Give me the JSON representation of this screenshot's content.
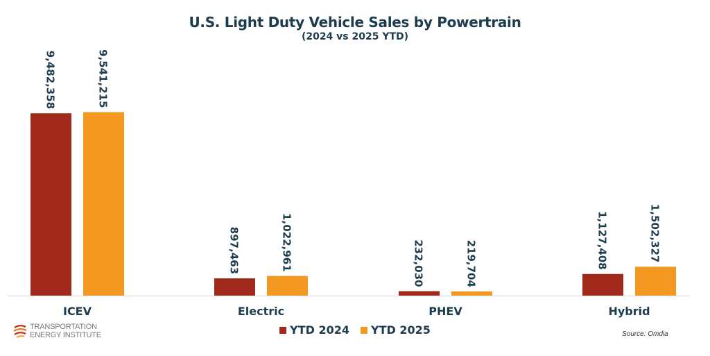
{
  "chart_data": {
    "type": "bar",
    "title": "U.S. Light Duty Vehicle Sales by Powertrain",
    "subtitle": "(2024 vs 2025 YTD)",
    "categories": [
      "ICEV",
      "Electric",
      "PHEV",
      "Hybrid"
    ],
    "series": [
      {
        "name": "YTD 2024",
        "color": "#a1291b",
        "values": [
          9482358,
          897463,
          232030,
          1127408
        ],
        "labels": [
          "9,482,358",
          "897,463",
          "232,030",
          "1,127,408"
        ]
      },
      {
        "name": "YTD 2025",
        "color": "#f39820",
        "values": [
          9541215,
          1022961,
          219704,
          1502327
        ],
        "labels": [
          "9,541,215",
          "1,022,961",
          "219,704",
          "1,502,327"
        ]
      }
    ],
    "xlabel": "",
    "ylabel": "",
    "ylim": [
      0,
      9600000
    ],
    "grid": false,
    "legend": "bottom-center",
    "data_labels": "rotated-vertical above bars"
  },
  "footer": {
    "logo_line1": "TRANSPORTATION",
    "logo_line2": "ENERGY INSTITUTE",
    "source": "Source: Omdia"
  },
  "colors": {
    "text": "#1d3c4e",
    "axis": "#e6e6e6"
  }
}
